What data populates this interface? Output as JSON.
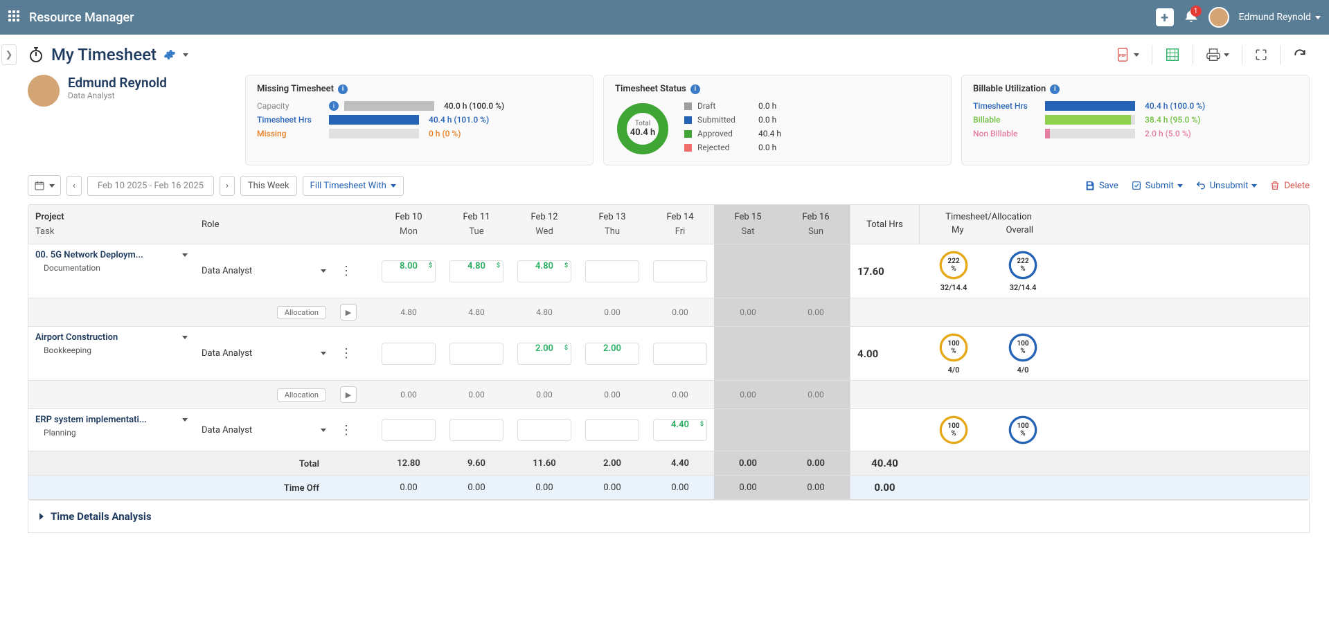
{
  "app": {
    "title": "Resource Manager"
  },
  "topbar": {
    "notification_count": "1",
    "user_name": "Edmund Reynold"
  },
  "page": {
    "title": "My Timesheet",
    "user": {
      "name": "Edmund Reynold",
      "role": "Data Analyst"
    }
  },
  "missing_card": {
    "title": "Missing Timesheet",
    "rows": [
      {
        "label": "Capacity",
        "label_class": "",
        "bar_color": "#bfbfbf",
        "bar_pct": 100,
        "value": "40.0 h (100.0 %)",
        "val_class": ""
      },
      {
        "label": "Timesheet Hrs",
        "label_class": "blue",
        "bar_color": "#2463b5",
        "bar_pct": 100,
        "value": "40.4 h (101.0 %)",
        "val_class": "blue"
      },
      {
        "label": "Missing",
        "label_class": "orange",
        "bar_color": "#e67e22",
        "bar_pct": 0,
        "value": "0 h (0 %)",
        "val_class": "orange"
      }
    ]
  },
  "status_card": {
    "title": "Timesheet Status",
    "donut": {
      "total_label": "Total",
      "total_value": "40.4 h",
      "color": "#3fa535"
    },
    "statuses": [
      {
        "color": "#9e9e9e",
        "label": "Draft",
        "value": "0.0 h"
      },
      {
        "color": "#2463b5",
        "label": "Submitted",
        "value": "0.0 h"
      },
      {
        "color": "#3fa535",
        "label": "Approved",
        "value": "40.4 h"
      },
      {
        "color": "#ef6f6f",
        "label": "Rejected",
        "value": "0.0 h"
      }
    ]
  },
  "billable_card": {
    "title": "Billable Utilization",
    "rows": [
      {
        "label": "Timesheet Hrs",
        "label_class": "blue",
        "bar_color": "#2463b5",
        "bar_pct": 100,
        "value": "40.4 h (100.0 %)",
        "val_class": "blue"
      },
      {
        "label": "Billable",
        "label_class": "green",
        "bar_color": "#8fd14f",
        "bar_pct": 95,
        "value": "38.4 h (95.0 %)",
        "val_class": "green"
      },
      {
        "label": "Non Billable",
        "label_class": "pink",
        "bar_color": "#e67ea0",
        "bar_pct": 5,
        "value": "2.0 h (5.0 %)",
        "val_class": "pink"
      }
    ]
  },
  "toolbar": {
    "date_range": "Feb 10 2025 - Feb 16 2025",
    "this_week": "This Week",
    "fill_with": "Fill Timesheet With",
    "save": "Save",
    "submit": "Submit",
    "unsubmit": "Unsubmit",
    "delete": "Delete"
  },
  "grid": {
    "header": {
      "project": "Project",
      "task": "Task",
      "role": "Role",
      "days": [
        {
          "d": "Feb 10",
          "w": "Mon",
          "weekend": false
        },
        {
          "d": "Feb 11",
          "w": "Tue",
          "weekend": false
        },
        {
          "d": "Feb 12",
          "w": "Wed",
          "weekend": false
        },
        {
          "d": "Feb 13",
          "w": "Thu",
          "weekend": false
        },
        {
          "d": "Feb 14",
          "w": "Fri",
          "weekend": false
        },
        {
          "d": "Feb 15",
          "w": "Sat",
          "weekend": true
        },
        {
          "d": "Feb 16",
          "w": "Sun",
          "weekend": true
        }
      ],
      "total": "Total Hrs",
      "ts_alloc": "Timesheet/Allocation",
      "my": "My",
      "overall": "Overall"
    },
    "rows": [
      {
        "project": "00. 5G Network Deploym...",
        "task": "Documentation",
        "role": "Data Analyst",
        "hours": [
          "8.00",
          "4.80",
          "4.80",
          "",
          "",
          "",
          ""
        ],
        "billable_flags": [
          true,
          true,
          true,
          false,
          false,
          false,
          false
        ],
        "allocation_label": "Allocation",
        "alloc": [
          "4.80",
          "4.80",
          "4.80",
          "0.00",
          "0.00",
          "0.00",
          "0.00"
        ],
        "total": "17.60",
        "my": {
          "pct": "222 %",
          "sub": "32/14.4",
          "ring_color": "#e6a817"
        },
        "overall": {
          "pct": "222 %",
          "sub": "32/14.4",
          "ring_color": "#2463b5"
        }
      },
      {
        "project": "Airport Construction",
        "task": "Bookkeeping",
        "role": "Data Analyst",
        "hours": [
          "",
          "",
          "2.00",
          "2.00",
          "",
          "",
          ""
        ],
        "billable_flags": [
          false,
          false,
          true,
          false,
          false,
          false,
          false
        ],
        "allocation_label": "Allocation",
        "alloc": [
          "0.00",
          "0.00",
          "0.00",
          "0.00",
          "0.00",
          "0.00",
          "0.00"
        ],
        "total": "4.00",
        "my": {
          "pct": "100 %",
          "sub": "4/0",
          "ring_color": "#e6a817"
        },
        "overall": {
          "pct": "100 %",
          "sub": "4/0",
          "ring_color": "#2463b5"
        }
      },
      {
        "project": "ERP system implementati...",
        "task": "Planning",
        "role": "Data Analyst",
        "hours": [
          "",
          "",
          "",
          "",
          "4.40",
          "",
          ""
        ],
        "billable_flags": [
          false,
          false,
          false,
          false,
          true,
          false,
          false
        ],
        "allocation_label": "",
        "alloc": null,
        "total": "",
        "my": {
          "pct": "100 %",
          "sub": "",
          "ring_color": "#e6a817"
        },
        "overall": {
          "pct": "100 %",
          "sub": "",
          "ring_color": "#2463b5"
        }
      }
    ],
    "totals": {
      "label": "Total",
      "days": [
        "12.80",
        "9.60",
        "11.60",
        "2.00",
        "4.40",
        "0.00",
        "0.00"
      ],
      "grand": "40.40"
    },
    "timeoff": {
      "label": "Time Off",
      "days": [
        "0.00",
        "0.00",
        "0.00",
        "0.00",
        "0.00",
        "0.00",
        "0.00"
      ],
      "grand": "0.00"
    }
  },
  "details": {
    "title": "Time Details Analysis"
  }
}
